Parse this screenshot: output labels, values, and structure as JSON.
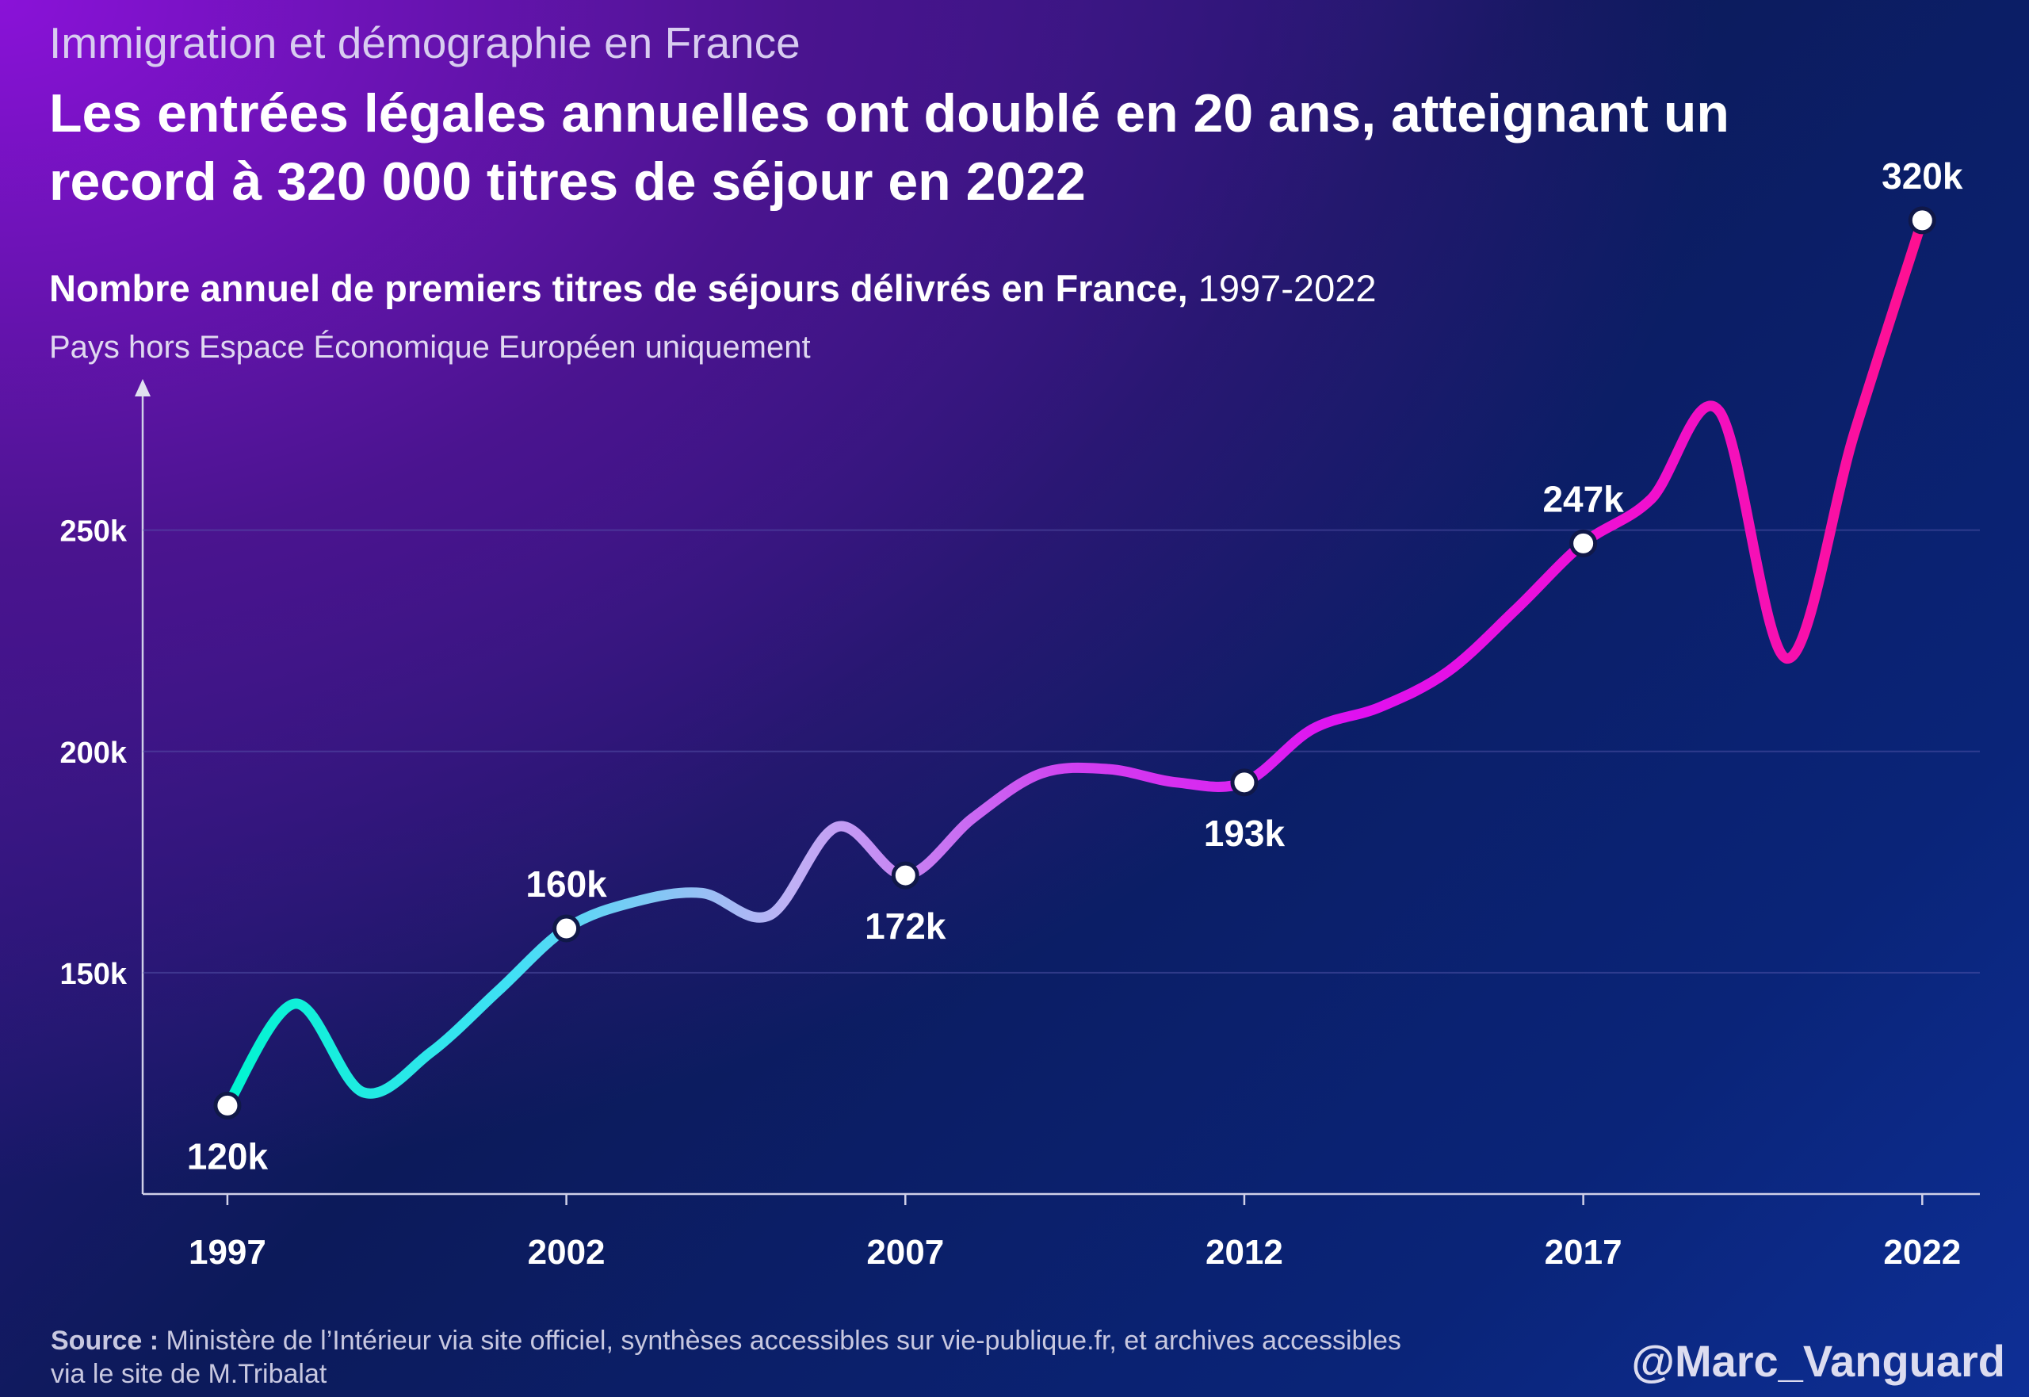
{
  "chart_data": {
    "type": "line",
    "kicker": "Immigration et démographie en France",
    "title": [
      "Les entrées légales annuelles ont doublé en 20 ans, atteignant un",
      "record à 320 000 titres de séjour en 2022"
    ],
    "subtitle_bold": "Nombre annuel de premiers titres de séjours délivrés en France,",
    "subtitle_years": "1997-2022",
    "note": "Pays hors Espace Économique Européen uniquement",
    "source_label": "Source :",
    "source": "Ministère de l’Intérieur via site officiel, synthèses accessibles sur vie-publique.fr, et archives accessibles via le site de M.Tribalat",
    "handle": "@Marc_Vanguard",
    "x": [
      1997,
      1998,
      1999,
      2000,
      2001,
      2002,
      2003,
      2004,
      2005,
      2006,
      2007,
      2008,
      2009,
      2010,
      2011,
      2012,
      2013,
      2014,
      2015,
      2016,
      2017,
      2018,
      2019,
      2020,
      2021,
      2022
    ],
    "values": [
      120000,
      143000,
      123000,
      132000,
      146000,
      160000,
      166000,
      168000,
      163000,
      183000,
      172000,
      185000,
      195000,
      196000,
      193000,
      193000,
      205000,
      210000,
      218000,
      232000,
      247000,
      257000,
      277000,
      221000,
      272000,
      320000
    ],
    "value_labels": [
      "120k",
      null,
      null,
      null,
      null,
      "160k",
      null,
      null,
      null,
      null,
      "172k",
      null,
      null,
      null,
      null,
      "193k",
      null,
      null,
      null,
      null,
      "247k",
      null,
      null,
      null,
      null,
      "320k"
    ],
    "line_gradient": [
      "#00f5d0",
      "#40e0f5",
      "#c0b0f5",
      "#d040f0",
      "#e010f0",
      "#f010d0",
      "#ff1090"
    ],
    "xlim": [
      1995.75,
      2022.85
    ],
    "xticks": [
      1997,
      2002,
      2007,
      2012,
      2017,
      2022
    ],
    "ylim": [
      100000,
      282000
    ],
    "yticks": [
      {
        "value": 150000,
        "label": "150k"
      },
      {
        "value": 200000,
        "label": "200k"
      },
      {
        "value": 250000,
        "label": "250k"
      }
    ],
    "grid": true
  }
}
